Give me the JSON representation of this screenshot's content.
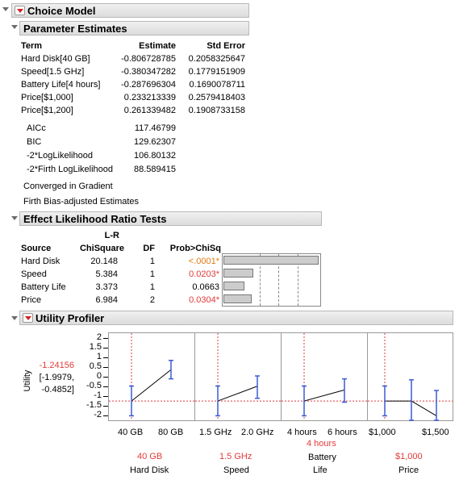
{
  "choice_model": {
    "title": "Choice Model",
    "param_estimates": {
      "title": "Parameter Estimates",
      "columns": [
        "Term",
        "Estimate",
        "Std Error"
      ],
      "rows": [
        [
          "Hard Disk[40 GB]",
          "-0.806728785",
          "0.2058325647"
        ],
        [
          "Speed[1.5 GHz]",
          "-0.380347282",
          "0.1779151909"
        ],
        [
          "Battery Life[4 hours]",
          "-0.287696304",
          "0.1690078711"
        ],
        [
          "Price[$1,000]",
          "0.233213339",
          "0.2579418403"
        ],
        [
          "Price[$1,200]",
          "0.261339482",
          "0.1908733158"
        ]
      ],
      "fit_stats": [
        [
          "AICc",
          "117.46799"
        ],
        [
          "BIC",
          "129.62307"
        ],
        [
          "-2*LogLikelihood",
          "106.80132"
        ],
        [
          "-2*Firth LogLikelihood",
          "88.589415"
        ]
      ],
      "note1": "Converged in Gradient",
      "note2": "Firth Bias-adjusted Estimates"
    },
    "lr_tests": {
      "title": "Effect Likelihood Ratio Tests",
      "col_lr_top": "L-R",
      "columns": [
        "Source",
        "ChiSquare",
        "DF",
        "Prob>ChiSq"
      ],
      "rows": [
        {
          "source": "Hard Disk",
          "chisq": "20.148",
          "df": "1",
          "prob": "<.0001*",
          "prob_color": "#e07a10",
          "bar_fraction": 0.98
        },
        {
          "source": "Speed",
          "chisq": "5.384",
          "df": "1",
          "prob": "0.0203*",
          "prob_color": "#e23a3a",
          "bar_fraction": 0.31
        },
        {
          "source": "Battery Life",
          "chisq": "3.373",
          "df": "1",
          "prob": "0.0663",
          "prob_color": "#000000",
          "bar_fraction": 0.22
        },
        {
          "source": "Price",
          "chisq": "6.984",
          "df": "2",
          "prob": "0.0304*",
          "prob_color": "#e23a3a",
          "bar_fraction": 0.29
        }
      ]
    },
    "profiler": {
      "title": "Utility Profiler",
      "y_label": "Utility",
      "y_value": "-1.24156",
      "y_ci_line1": "[-1.9979,",
      "y_ci_line2": "-0.4852]",
      "y_ticks": [
        "2",
        "1.5",
        "1",
        "0.5",
        "0",
        "-0.5",
        "-1",
        "-1.5",
        "-2"
      ],
      "factors": [
        {
          "name": "Hard Disk",
          "current": "40 GB",
          "levels": [
            "40 GB",
            "80 GB"
          ]
        },
        {
          "name": "Speed",
          "current": "1.5 GHz",
          "levels": [
            "1.5 GHz",
            "2.0 GHz"
          ]
        },
        {
          "name_line1": "Battery",
          "name_line2": "Life",
          "current": "4 hours",
          "levels": [
            "4 hours",
            "6 hours"
          ]
        },
        {
          "name": "Price",
          "current": "$1,000",
          "levels": [
            "$1,000",
            "$1,500"
          ]
        }
      ]
    }
  },
  "colors": {
    "accent_red": "#e23a3a",
    "orange": "#e07a10",
    "profile_blue": "#3b5bd6"
  }
}
